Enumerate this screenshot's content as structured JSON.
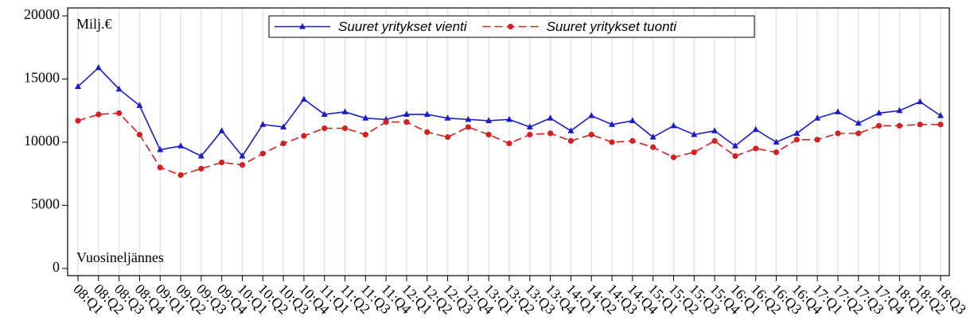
{
  "chart_data": {
    "type": "line",
    "y_annotation": "Milj.€",
    "x_annotation": "Vuosineljännes",
    "categories": [
      "08:Q1",
      "08:Q2",
      "08:Q3",
      "08:Q4",
      "09:Q1",
      "09:Q2",
      "09:Q3",
      "09:Q4",
      "10:Q1",
      "10:Q2",
      "10:Q3",
      "10:Q4",
      "11:Q1",
      "11:Q2",
      "11:Q3",
      "11:Q4",
      "12:Q1",
      "12:Q2",
      "12:Q3",
      "12:Q4",
      "13:Q1",
      "13:Q2",
      "13:Q3",
      "13:Q4",
      "14:Q1",
      "14:Q2",
      "14:Q3",
      "14:Q4",
      "15:Q1",
      "15:Q2",
      "15:Q3",
      "15:Q4",
      "16:Q1",
      "16:Q2",
      "16:Q3",
      "16:Q4",
      "17:Q1",
      "17:Q2",
      "17:Q3",
      "17:Q4",
      "18:Q1",
      "18:Q2",
      "18:Q3"
    ],
    "series": [
      {
        "name": "Suuret yritykset vienti",
        "color": "#1a1acc",
        "marker": "triangle",
        "linestyle": "solid",
        "values": [
          14400,
          15900,
          14200,
          12900,
          9400,
          9700,
          8900,
          10900,
          8900,
          11400,
          11200,
          13400,
          12200,
          12400,
          11900,
          11800,
          12200,
          12200,
          11900,
          11800,
          11700,
          11800,
          11200,
          11900,
          10900,
          12100,
          11400,
          11700,
          10400,
          11300,
          10600,
          10900,
          9700,
          11000,
          10000,
          10700,
          11900,
          12400,
          11500,
          12300,
          12500,
          13200,
          12100
        ]
      },
      {
        "name": "Suuret yritykset tuonti",
        "color": "#d42020",
        "marker": "circle",
        "linestyle": "dashed",
        "values": [
          11700,
          12200,
          12300,
          10600,
          8000,
          7400,
          7900,
          8400,
          8200,
          9100,
          9900,
          10500,
          11100,
          11100,
          10600,
          11600,
          11600,
          10800,
          10400,
          11200,
          10600,
          9900,
          10600,
          10700,
          10100,
          10600,
          10000,
          10100,
          9600,
          8800,
          9200,
          10100,
          8900,
          9500,
          9200,
          10200,
          10200,
          10700,
          10700,
          11300,
          11300,
          11400,
          11400
        ]
      }
    ],
    "ylim": [
      0,
      20000
    ],
    "yticks": [
      0,
      5000,
      10000,
      15000,
      20000
    ],
    "xgrid": true
  }
}
